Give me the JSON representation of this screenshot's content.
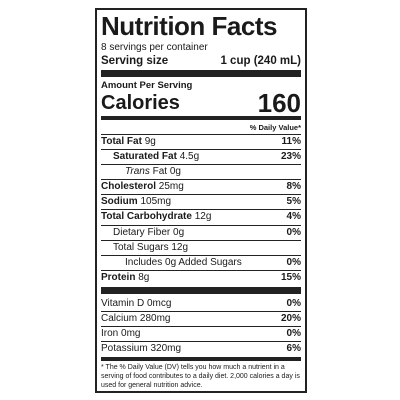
{
  "title": "Nutrition Facts",
  "servings": "8 servings per container",
  "serving_size": {
    "label": "Serving size",
    "value": "1 cup (240 mL)"
  },
  "amount_per_serving": "Amount Per Serving",
  "calories": {
    "label": "Calories",
    "value": "160"
  },
  "dv_header": "% Daily Value*",
  "rows": [
    {
      "name": "Total Fat",
      "amount": "9g",
      "dv": "11%"
    },
    {
      "name": "Saturated Fat",
      "amount": "4.5g",
      "dv": "23%"
    },
    {
      "name_italic": "Trans",
      "name": "Fat",
      "amount": "0g"
    },
    {
      "name": "Cholesterol",
      "amount": "25mg",
      "dv": "8%"
    },
    {
      "name": "Sodium",
      "amount": "105mg",
      "dv": "5%"
    },
    {
      "name": "Total Carbohydrate",
      "amount": "12g",
      "dv": "4%"
    },
    {
      "name": "Dietary Fiber",
      "amount": "0g",
      "dv": "0%"
    },
    {
      "name": "Total Sugars",
      "amount": "12g"
    },
    {
      "name": "Includes 0g Added Sugars",
      "dv": "0%"
    },
    {
      "name": "Protein",
      "amount": "8g",
      "dv": "15%"
    }
  ],
  "vitamins": [
    {
      "name": "Vitamin D",
      "amount": "0mcg",
      "dv": "0%"
    },
    {
      "name": "Calcium",
      "amount": "280mg",
      "dv": "20%"
    },
    {
      "name": "Iron",
      "amount": "0mg",
      "dv": "0%"
    },
    {
      "name": "Potassium",
      "amount": "320mg",
      "dv": "6%"
    }
  ],
  "footnote": "* The % Daily Value (DV) tells you how much a nutrient in a serving of food contributes to a daily diet. 2,000 calories a day is used for general nutrition advice."
}
